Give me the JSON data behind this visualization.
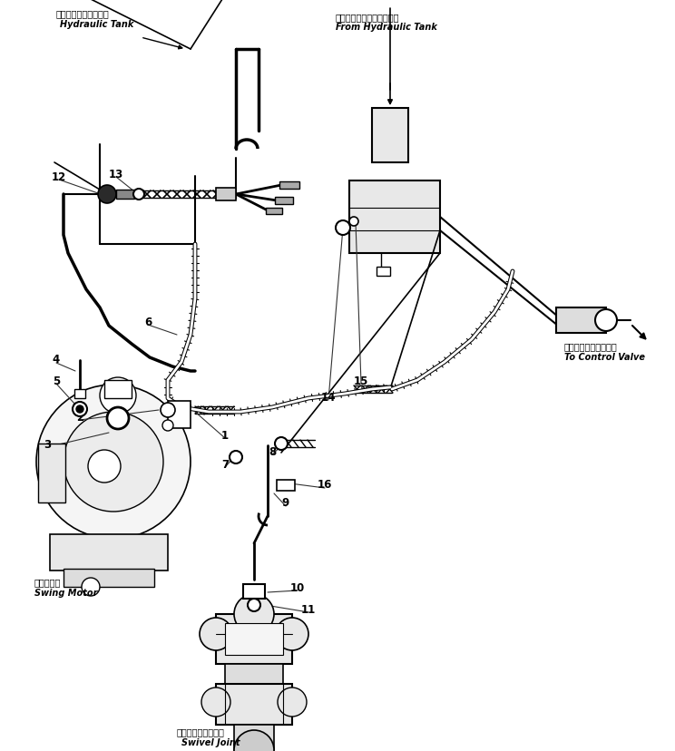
{
  "bg_color": "#ffffff",
  "line_color": "#000000",
  "fig_width": 7.44,
  "fig_height": 8.29,
  "dpi": 100,
  "labels": {
    "hydraulic_tank_jp": "ハイドロリックタンク",
    "hydraulic_tank_en": "Hydraulic Tank",
    "from_hydraulic_tank_jp": "ハイドロリックタンクから",
    "from_hydraulic_tank_en": "From Hydraulic Tank",
    "to_control_valve_jp": "コントロールバルブへ",
    "to_control_valve_en": "To Control Valve",
    "swing_motor_jp": "旋回モータ",
    "swing_motor_en": "Swing Motor",
    "swivel_joint_jp": "スイベルジョイント",
    "swivel_joint_en": "Swivel Joint"
  }
}
